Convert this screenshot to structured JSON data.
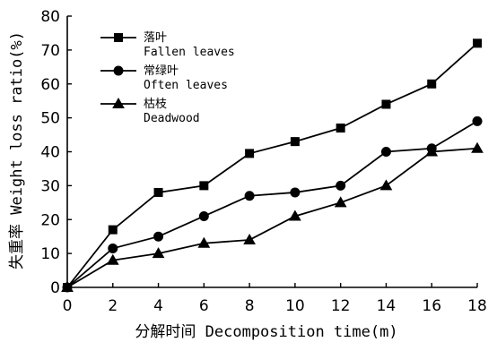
{
  "chart_data": {
    "type": "line",
    "xlabel": "分解时间 Decomposition time(m)",
    "ylabel": "失重率 Weight loss ratio(%)",
    "xlim": [
      0,
      18
    ],
    "ylim": [
      0,
      80
    ],
    "x_ticks": [
      0,
      2,
      4,
      6,
      8,
      10,
      12,
      14,
      16,
      18
    ],
    "y_ticks": [
      10,
      20,
      30,
      40,
      50,
      60,
      70,
      80
    ],
    "y_origin_label": "0",
    "grid": false,
    "legend_position": "top-left",
    "series": [
      {
        "name": "落叶",
        "name_en": "Fallen leaves",
        "marker": "square",
        "x": [
          0,
          2,
          4,
          6,
          8,
          10,
          12,
          14,
          16,
          18
        ],
        "values": [
          0,
          17,
          28,
          30,
          39.5,
          43,
          47,
          54,
          60,
          72
        ]
      },
      {
        "name": "常绿叶",
        "name_en": "Often leaves",
        "marker": "circle",
        "x": [
          0,
          2,
          4,
          6,
          8,
          10,
          12,
          14,
          16,
          18
        ],
        "values": [
          0,
          11.5,
          15,
          21,
          27,
          28,
          30,
          40,
          41,
          49
        ]
      },
      {
        "name": "枯枝",
        "name_en": "Deadwood",
        "marker": "triangle",
        "x": [
          0,
          2,
          4,
          6,
          8,
          10,
          12,
          14,
          16,
          18
        ],
        "values": [
          0,
          8,
          10,
          13,
          14,
          21,
          25,
          30,
          40,
          41
        ]
      }
    ]
  }
}
